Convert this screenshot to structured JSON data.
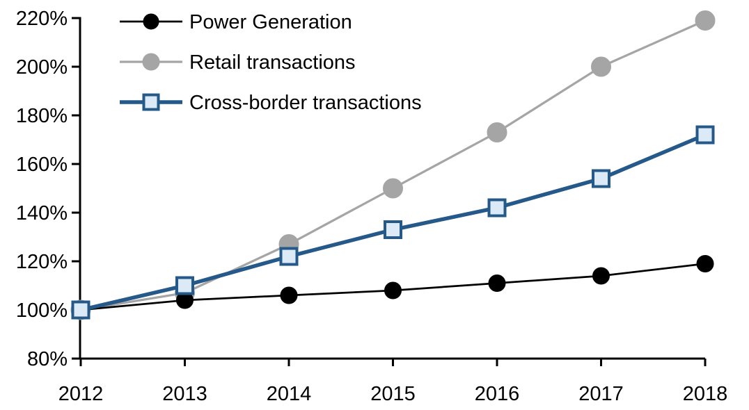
{
  "chart_data": {
    "type": "line",
    "title": "",
    "xlabel": "",
    "ylabel": "",
    "x_labels": [
      "2012",
      "2013",
      "2014",
      "2015",
      "2016",
      "2017",
      "2018"
    ],
    "y_axis": {
      "min": 80,
      "max": 220,
      "step": 20,
      "suffix": "%"
    },
    "ylim": [
      80,
      220
    ],
    "grid": false,
    "legend_position": "top-left",
    "axis_color": "#000000",
    "background_color": "#ffffff",
    "series": [
      {
        "name": "Power Generation",
        "line_color": "#000000",
        "marker": "circle",
        "marker_fill": "#000000",
        "marker_stroke": "#000000",
        "values": [
          100,
          104,
          106,
          108,
          111,
          114,
          119
        ]
      },
      {
        "name": "Retail transactions",
        "line_color": "#A5A5A5",
        "marker": "circle",
        "marker_fill": "#A5A5A5",
        "marker_stroke": "#A5A5A5",
        "values": [
          100,
          107,
          127,
          150,
          173,
          200,
          219
        ]
      },
      {
        "name": "Cross-border transactions",
        "line_color": "#24598A",
        "marker": "square",
        "marker_fill": "#DCE9F6",
        "marker_stroke": "#24598A",
        "values": [
          100,
          110,
          122,
          133,
          142,
          154,
          172
        ]
      }
    ]
  }
}
